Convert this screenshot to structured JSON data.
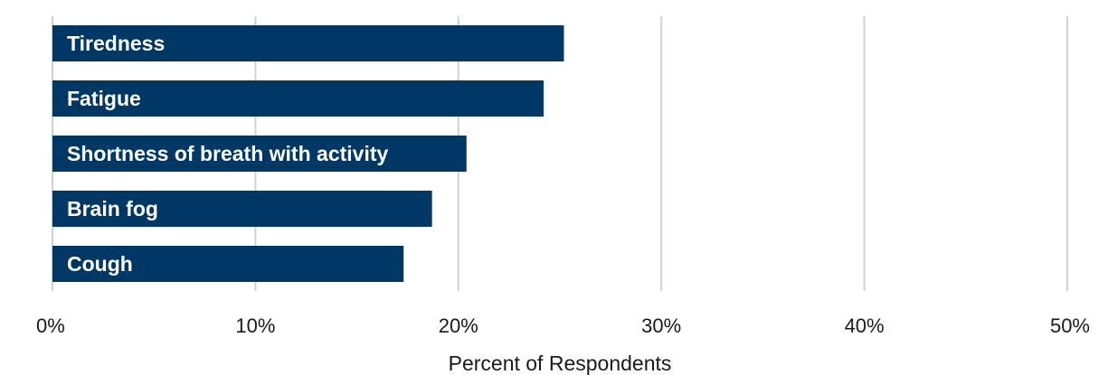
{
  "chart_data": {
    "type": "bar",
    "orientation": "horizontal",
    "categories": [
      "Tiredness",
      "Fatigue",
      "Shortness of breath with activity",
      "Brain fog",
      "Cough"
    ],
    "values": [
      25.2,
      24.2,
      20.4,
      18.7,
      17.3
    ],
    "value_unit": "%",
    "xlabel": "Percent of Respondents",
    "ylabel": "",
    "xlim": [
      0,
      50
    ],
    "xticks": [
      "0%",
      "10%",
      "20%",
      "30%",
      "40%",
      "50%"
    ],
    "grid": "vertical",
    "labels_inside_bars": true,
    "bar_color": "#003865",
    "grid_color": "#d0d0d0"
  }
}
